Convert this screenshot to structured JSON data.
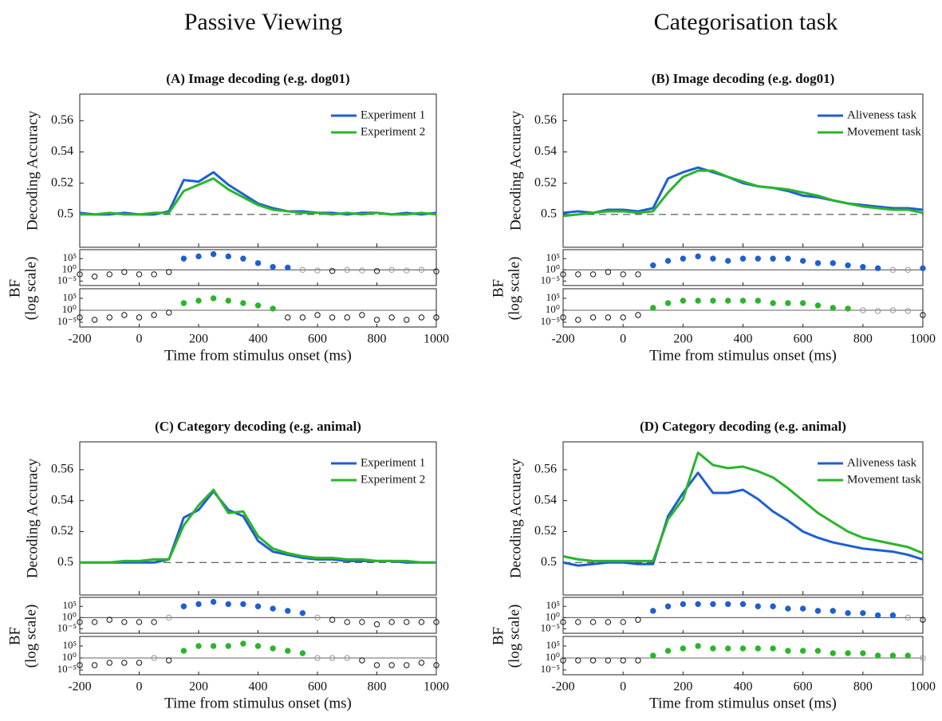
{
  "headings": [
    "Passive Viewing",
    "Categorisation task"
  ],
  "chart_data": [
    {
      "type": "line",
      "title": "(A) Image decoding (e.g. dog01)",
      "ylabel": "Decoding Accuracy",
      "xlabel": "Time from stimulus onset (ms)",
      "x": [
        -200,
        -150,
        -100,
        -50,
        0,
        50,
        100,
        150,
        200,
        250,
        300,
        350,
        400,
        450,
        500,
        550,
        600,
        650,
        700,
        750,
        800,
        850,
        900,
        950,
        1000
      ],
      "series": [
        {
          "name": "Experiment 1",
          "color": "#1f5fd1",
          "values": [
            0.501,
            0.5,
            0.5,
            0.501,
            0.5,
            0.5,
            0.502,
            0.522,
            0.521,
            0.527,
            0.519,
            0.513,
            0.507,
            0.504,
            0.502,
            0.502,
            0.501,
            0.501,
            0.5,
            0.501,
            0.501,
            0.5,
            0.501,
            0.5,
            0.501
          ]
        },
        {
          "name": "Experiment 2",
          "color": "#2ab52a",
          "values": [
            0.5,
            0.5,
            0.501,
            0.5,
            0.5,
            0.501,
            0.501,
            0.515,
            0.519,
            0.523,
            0.516,
            0.511,
            0.506,
            0.503,
            0.502,
            0.501,
            0.501,
            0.5,
            0.501,
            0.5,
            0.501,
            0.5,
            0.5,
            0.501,
            0.5
          ]
        }
      ],
      "xlim": [
        -200,
        1000
      ],
      "xticks": [
        -200,
        0,
        200,
        400,
        600,
        800,
        1000
      ],
      "ylim": [
        0.479,
        0.577
      ],
      "yticks": [
        0.5,
        0.52,
        0.54,
        0.56
      ],
      "reference_line": 0.5,
      "legend": "upper right",
      "bf": {
        "label": "BF",
        "sublabel": "(log scale)",
        "log": true,
        "ylim": [
          1e-07,
          1000000000.0
        ],
        "yticks": [
          {
            "value": 1e-05,
            "label": "10⁻⁵"
          },
          {
            "value": 1,
            "label": "10⁰"
          },
          {
            "value": 100000,
            "label": "10⁵"
          }
        ],
        "reference_line": 1,
        "strips": [
          {
            "values": [
              0.01,
              0.001,
              0.01,
              0.1,
              0.01,
              0.01,
              0.1,
              100000.0,
              1000000.0,
              10000000.0,
              1000000.0,
              100000.0,
              1000,
              20,
              10,
              1,
              0.5,
              0.3,
              1,
              0.5,
              0.3,
              1,
              0.5,
              1,
              0.2
            ]
          },
          {
            "values": [
              0.001,
              0.0001,
              0.001,
              0.01,
              0.001,
              0.01,
              0.1,
              1000,
              10000,
              100000.0,
              10000,
              1000,
              100,
              5,
              0.001,
              0.001,
              0.01,
              0.001,
              0.001,
              0.01,
              0.0001,
              0.001,
              0.0001,
              0.001,
              0.001
            ]
          }
        ]
      }
    },
    {
      "type": "line",
      "title": "(B) Image decoding (e.g. dog01)",
      "ylabel": "Decoding Accuracy",
      "xlabel": "Time from stimulus onset (ms)",
      "x": [
        -200,
        -150,
        -100,
        -50,
        0,
        50,
        100,
        150,
        200,
        250,
        300,
        350,
        400,
        450,
        500,
        550,
        600,
        650,
        700,
        750,
        800,
        850,
        900,
        950,
        1000
      ],
      "series": [
        {
          "name": "Aliveness task",
          "color": "#1f5fd1",
          "values": [
            0.501,
            0.502,
            0.501,
            0.503,
            0.503,
            0.502,
            0.504,
            0.523,
            0.527,
            0.53,
            0.527,
            0.524,
            0.52,
            0.518,
            0.517,
            0.515,
            0.512,
            0.511,
            0.509,
            0.507,
            0.506,
            0.505,
            0.504,
            0.504,
            0.503
          ]
        },
        {
          "name": "Movement task",
          "color": "#2ab52a",
          "values": [
            0.499,
            0.5,
            0.501,
            0.502,
            0.502,
            0.501,
            0.502,
            0.514,
            0.524,
            0.528,
            0.528,
            0.524,
            0.521,
            0.518,
            0.517,
            0.516,
            0.514,
            0.512,
            0.509,
            0.507,
            0.505,
            0.504,
            0.503,
            0.503,
            0.501
          ]
        }
      ],
      "xlim": [
        -200,
        1000
      ],
      "xticks": [
        -200,
        0,
        200,
        400,
        600,
        800,
        1000
      ],
      "ylim": [
        0.479,
        0.577
      ],
      "yticks": [
        0.5,
        0.52,
        0.54,
        0.56
      ],
      "reference_line": 0.5,
      "legend": "upper right",
      "bf": {
        "label": "BF",
        "sublabel": "(log scale)",
        "log": true,
        "ylim": [
          1e-07,
          1000000000.0
        ],
        "yticks": [
          {
            "value": 1e-05,
            "label": "10⁻⁵"
          },
          {
            "value": 1,
            "label": "10⁰"
          },
          {
            "value": 100000,
            "label": "10⁵"
          }
        ],
        "reference_line": 1,
        "strips": [
          {
            "values": [
              0.01,
              0.01,
              0.01,
              0.1,
              0.01,
              0.01,
              100,
              10000,
              100000.0,
              1000000.0,
              100000.0,
              10000,
              100000.0,
              100000.0,
              100000.0,
              100000.0,
              10000,
              1000,
              1000,
              100,
              20,
              5,
              1,
              1,
              5
            ]
          },
          {
            "values": [
              0.001,
              0.0001,
              0.001,
              0.001,
              0.001,
              0.01,
              10,
              1000,
              10000,
              10000,
              10000,
              10000,
              10000,
              10000,
              1000,
              1000,
              1000,
              100,
              10,
              5,
              1,
              0.5,
              1,
              0.5,
              0.01
            ]
          }
        ]
      }
    },
    {
      "type": "line",
      "title": "(C) Category decoding (e.g. animal)",
      "ylabel": "Decoding Accuracy",
      "xlabel": "Time from stimulus onset (ms)",
      "x": [
        -200,
        -150,
        -100,
        -50,
        0,
        50,
        100,
        150,
        200,
        250,
        300,
        350,
        400,
        450,
        500,
        550,
        600,
        650,
        700,
        750,
        800,
        850,
        900,
        950,
        1000
      ],
      "series": [
        {
          "name": "Experiment 1",
          "color": "#1f5fd1",
          "values": [
            0.5,
            0.5,
            0.5,
            0.5,
            0.5,
            0.5,
            0.502,
            0.529,
            0.534,
            0.546,
            0.534,
            0.53,
            0.514,
            0.507,
            0.505,
            0.503,
            0.502,
            0.502,
            0.501,
            0.501,
            0.501,
            0.501,
            0.5,
            0.5,
            0.5
          ]
        },
        {
          "name": "Experiment 2",
          "color": "#2ab52a",
          "values": [
            0.5,
            0.5,
            0.5,
            0.501,
            0.501,
            0.502,
            0.502,
            0.524,
            0.537,
            0.547,
            0.532,
            0.533,
            0.517,
            0.509,
            0.506,
            0.504,
            0.503,
            0.503,
            0.502,
            0.502,
            0.501,
            0.501,
            0.501,
            0.5,
            0.5
          ]
        }
      ],
      "xlim": [
        -200,
        1000
      ],
      "xticks": [
        -200,
        0,
        200,
        400,
        600,
        800,
        1000
      ],
      "ylim": [
        0.479,
        0.578
      ],
      "yticks": [
        0.5,
        0.52,
        0.54,
        0.56
      ],
      "reference_line": 0.5,
      "legend": "upper right",
      "bf": {
        "label": "BF",
        "sublabel": "(log scale)",
        "log": true,
        "ylim": [
          1e-07,
          1000000000.0
        ],
        "yticks": [
          {
            "value": 1e-05,
            "label": "10⁻⁵"
          },
          {
            "value": 1,
            "label": "10⁰"
          },
          {
            "value": 100000,
            "label": "10⁵"
          }
        ],
        "reference_line": 1,
        "strips": [
          {
            "values": [
              0.01,
              0.01,
              0.1,
              0.01,
              0.01,
              0.01,
              1,
              100000.0,
              1000000.0,
              10000000.0,
              1000000.0,
              1000000.0,
              100000.0,
              10000,
              1000,
              100,
              1,
              0.1,
              0.01,
              0.01,
              0.001,
              0.01,
              0.01,
              0.01,
              0.01
            ]
          },
          {
            "values": [
              0.001,
              0.001,
              0.01,
              0.01,
              0.01,
              1,
              0.1,
              1000,
              100000.0,
              100000.0,
              100000.0,
              1000000.0,
              100000.0,
              10000,
              1000,
              100,
              1,
              1,
              1,
              0.1,
              0.001,
              0.001,
              0.001,
              0.01,
              0.001
            ]
          }
        ]
      }
    },
    {
      "type": "line",
      "title": "(D) Category decoding (e.g. animal)",
      "ylabel": "Decoding Accuracy",
      "xlabel": "Time from stimulus onset (ms)",
      "x": [
        -200,
        -150,
        -100,
        -50,
        0,
        50,
        100,
        150,
        200,
        250,
        300,
        350,
        400,
        450,
        500,
        550,
        600,
        650,
        700,
        750,
        800,
        850,
        900,
        950,
        1000
      ],
      "series": [
        {
          "name": "Aliveness task",
          "color": "#1f5fd1",
          "values": [
            0.5,
            0.498,
            0.499,
            0.5,
            0.5,
            0.499,
            0.499,
            0.53,
            0.545,
            0.558,
            0.545,
            0.545,
            0.547,
            0.541,
            0.533,
            0.527,
            0.52,
            0.516,
            0.513,
            0.511,
            0.509,
            0.508,
            0.507,
            0.505,
            0.502
          ]
        },
        {
          "name": "Movement task",
          "color": "#2ab52a",
          "values": [
            0.504,
            0.502,
            0.501,
            0.501,
            0.501,
            0.501,
            0.501,
            0.528,
            0.541,
            0.571,
            0.563,
            0.561,
            0.562,
            0.559,
            0.555,
            0.548,
            0.54,
            0.532,
            0.526,
            0.52,
            0.516,
            0.514,
            0.512,
            0.51,
            0.506
          ]
        }
      ],
      "xlim": [
        -200,
        1000
      ],
      "xticks": [
        -200,
        0,
        200,
        400,
        600,
        800,
        1000
      ],
      "ylim": [
        0.479,
        0.578
      ],
      "yticks": [
        0.5,
        0.52,
        0.54,
        0.56
      ],
      "reference_line": 0.5,
      "legend": "upper right",
      "bf": {
        "label": "BF",
        "sublabel": "(log scale)",
        "log": true,
        "ylim": [
          1e-07,
          1000000000.0
        ],
        "yticks": [
          {
            "value": 1e-05,
            "label": "10⁻⁵"
          },
          {
            "value": 1,
            "label": "10⁰"
          },
          {
            "value": 100000,
            "label": "10⁵"
          }
        ],
        "reference_line": 1,
        "strips": [
          {
            "values": [
              0.01,
              0.01,
              0.01,
              0.01,
              0.01,
              0.1,
              1000,
              100000.0,
              1000000.0,
              1000000.0,
              1000000.0,
              1000000.0,
              1000000.0,
              100000.0,
              100000.0,
              10000,
              10000,
              1000,
              1000,
              100,
              100,
              10,
              10,
              1,
              0.1
            ]
          },
          {
            "values": [
              0.1,
              0.1,
              0.1,
              0.1,
              0.1,
              0.1,
              10,
              1000,
              10000,
              100000.0,
              10000,
              10000,
              10000,
              10000,
              10000,
              1000,
              1000,
              1000,
              100,
              100,
              100,
              10,
              10,
              10,
              1
            ]
          }
        ]
      }
    }
  ]
}
